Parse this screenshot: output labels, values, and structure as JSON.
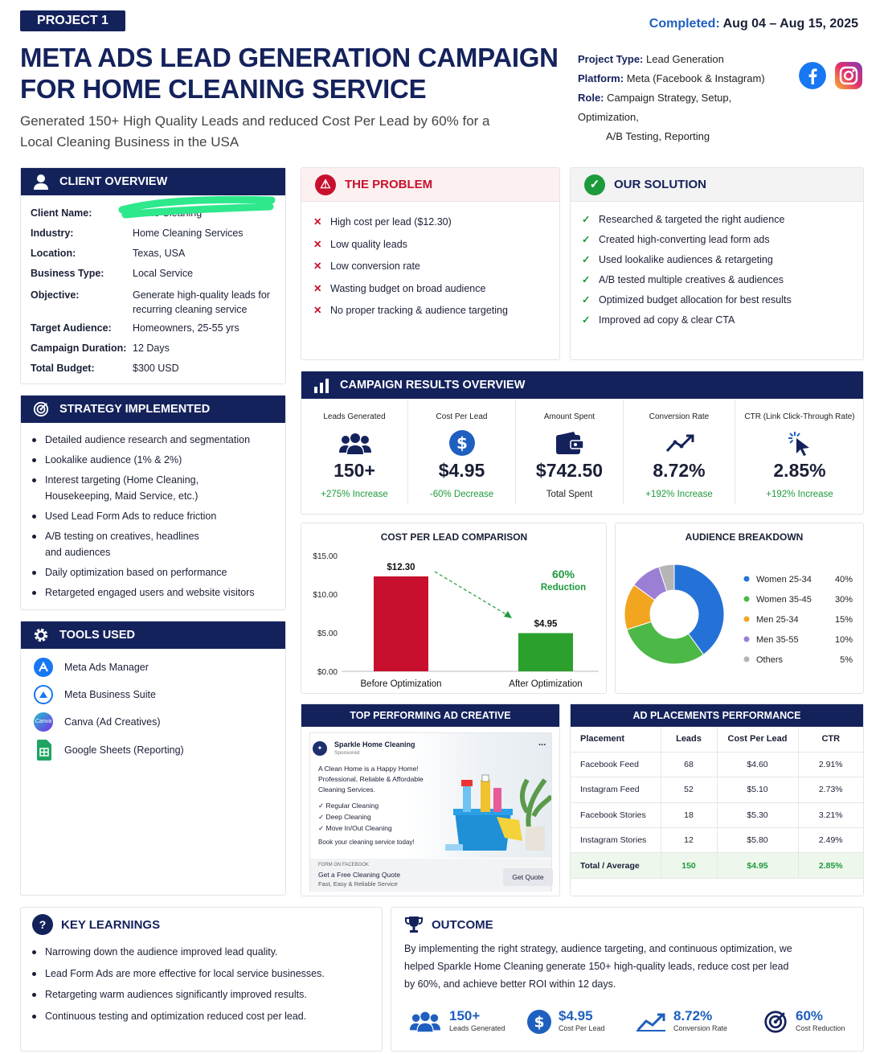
{
  "project_badge": "PROJECT 1",
  "title": "META ADS LEAD GENERATION CAMPAIGN FOR HOME CLEANING SERVICE",
  "subtitle": "Generated 150+ High Quality Leads and reduced Cost Per Lead by 60% for a Local Cleaning Business in the USA",
  "completed": {
    "label": "Completed:",
    "value": "Aug 04 – Aug 15, 2025"
  },
  "meta": {
    "project_type_label": "Project Type:",
    "project_type": "Lead Generation",
    "platform_label": "Platform:",
    "platform": "Meta (Facebook & Instagram)",
    "role_label": "Role:",
    "role_line1": "Campaign Strategy, Setup, Optimization,",
    "role_line2": "A/B Testing, Reporting"
  },
  "client_overview": {
    "header": "CLIENT OVERVIEW",
    "rows": [
      {
        "k": "Client Name:",
        "v": "Home Cleaning"
      },
      {
        "k": "Industry:",
        "v": "Home Cleaning Services"
      },
      {
        "k": "Location:",
        "v": "Texas, USA"
      },
      {
        "k": "Business Type:",
        "v": "Local Service"
      },
      {
        "k": "Objective:",
        "v": "Generate high-quality leads for recurring cleaning service"
      },
      {
        "k": "Target Audience:",
        "v": "Homeowners, 25-55 yrs"
      },
      {
        "k": "Campaign Duration:",
        "v": "12 Days"
      },
      {
        "k": "Total Budget:",
        "v": "$300 USD"
      }
    ]
  },
  "strategy": {
    "header": "STRATEGY IMPLEMENTED",
    "items": [
      "Detailed audience research and segmentation",
      "Lookalike audience (1% & 2%)",
      "Interest targeting (Home Cleaning, Housekeeping, Maid Service, etc.)",
      "Used Lead Form Ads to reduce friction",
      "A/B testing on creatives, headlines and audiences",
      "Daily optimization based on performance",
      "Retargeted engaged users and website visitors"
    ]
  },
  "tools": {
    "header": "TOOLS USED",
    "items": [
      "Meta Ads Manager",
      "Meta Business Suite",
      "Canva (Ad Creatives)",
      "Google Sheets (Reporting)"
    ],
    "canva_icon_text": "Canva"
  },
  "problem": {
    "header": "THE PROBLEM",
    "items": [
      "High cost per lead ($12.30)",
      "Low quality leads",
      "Low conversion rate",
      "Wasting budget on broad audience",
      "No proper tracking & audience targeting"
    ]
  },
  "solution": {
    "header": "OUR SOLUTION",
    "items": [
      "Researched & targeted the right audience",
      "Created high-converting lead form ads",
      "Used lookalike audiences & retargeting",
      "A/B tested multiple creatives & audiences",
      "Optimized budget allocation for best results",
      "Improved ad copy & clear CTA"
    ]
  },
  "results": {
    "header": "CAMPAIGN RESULTS OVERVIEW",
    "metrics": [
      {
        "label": "Leads Generated",
        "value": "150+",
        "sub": "+275% Increase",
        "sub_color": "#1d9a3c"
      },
      {
        "label": "Cost Per Lead",
        "value": "$4.95",
        "sub": "-60% Decrease",
        "sub_color": "#1d9a3c"
      },
      {
        "label": "Amount Spent",
        "value": "$742.50",
        "sub": "Total Spent",
        "sub_color": "#222222"
      },
      {
        "label": "Conversion Rate",
        "value": "8.72%",
        "sub": "+192% Increase",
        "sub_color": "#1d9a3c"
      },
      {
        "label": "CTR (Link Click-Through Rate)",
        "value": "2.85%",
        "sub": "+192% Increase",
        "sub_color": "#1d9a3c"
      }
    ]
  },
  "chart_data": [
    {
      "type": "bar",
      "title": "COST PER LEAD COMPARISON",
      "categories": [
        "Before Optimization",
        "After Optimization"
      ],
      "values": [
        12.3,
        4.95
      ],
      "data_labels": [
        "$12.30",
        "$4.95"
      ],
      "colors": [
        "#c8102e",
        "#2ca02c"
      ],
      "y_ticks": [
        "$0.00",
        "$5.00",
        "$10.00",
        "$15.00"
      ],
      "ylim": [
        0,
        15
      ],
      "grid": false,
      "annotation": {
        "value": "60%",
        "text": "Reduction"
      }
    },
    {
      "type": "pie",
      "title": "AUDIENCE BREAKDOWN",
      "labels": [
        "Women 25-34",
        "Women 35-45",
        "Men 25-34",
        "Men 35-55",
        "Others"
      ],
      "values": [
        40,
        30,
        15,
        10,
        5
      ],
      "value_labels": [
        "40%",
        "30%",
        "15%",
        "10%",
        "5%"
      ],
      "colors": [
        "#2472d8",
        "#4cb847",
        "#f2a51f",
        "#9b7fd4",
        "#b5b5b5"
      ],
      "legend": "right"
    }
  ],
  "ad_creative": {
    "header": "TOP PERFORMING AD CREATIVE",
    "page_name": "Sparkle Home Cleaning",
    "sponsored": "Sponsored",
    "more": "...",
    "body": "A Clean Home is a Happy Home! Professional, Reliable & Affordable Cleaning Services.",
    "checks": [
      "✓ Regular Cleaning",
      "✓ Deep Cleaning",
      "✓ Move In/Out Cleaning"
    ],
    "cta_line": "Book your cleaning service today!",
    "form_label": "FORM ON FACEBOOK",
    "form_title": "Get a Free Cleaning Quote",
    "form_sub": "Fast, Easy & Reliable Service",
    "button": "Get Quote"
  },
  "placements": {
    "header": "AD PLACEMENTS PERFORMANCE",
    "columns": [
      "Placement",
      "Leads",
      "Cost Per Lead",
      "CTR"
    ],
    "rows": [
      [
        "Facebook Feed",
        "68",
        "$4.60",
        "2.91%"
      ],
      [
        "Instagram Feed",
        "52",
        "$5.10",
        "2.73%"
      ],
      [
        "Facebook Stories",
        "18",
        "$5.30",
        "3.21%"
      ],
      [
        "Instagram Stories",
        "12",
        "$5.80",
        "2.49%"
      ]
    ],
    "total": [
      "Total / Average",
      "150",
      "$4.95",
      "2.85%"
    ]
  },
  "learnings": {
    "header": "KEY LEARNINGS",
    "items": [
      "Narrowing down the audience improved lead quality.",
      "Lead Form Ads are more effective for local service businesses.",
      "Retargeting warm audiences significantly improved results.",
      "Continuous testing and optimization reduced cost per lead."
    ]
  },
  "outcome": {
    "header": "OUTCOME",
    "text": "By implementing the right strategy, audience targeting, and continuous optimization, we helped Sparkle Home Cleaning generate 150+ high-quality leads, reduce cost per lead by 60%, and achieve better ROI within 12 days.",
    "stats": [
      {
        "value": "150+",
        "label": "Leads Generated"
      },
      {
        "value": "$4.95",
        "label": "Cost Per Lead"
      },
      {
        "value": "8.72%",
        "label": "Conversion Rate"
      },
      {
        "value": "60%",
        "label": "Cost Reduction"
      }
    ]
  }
}
